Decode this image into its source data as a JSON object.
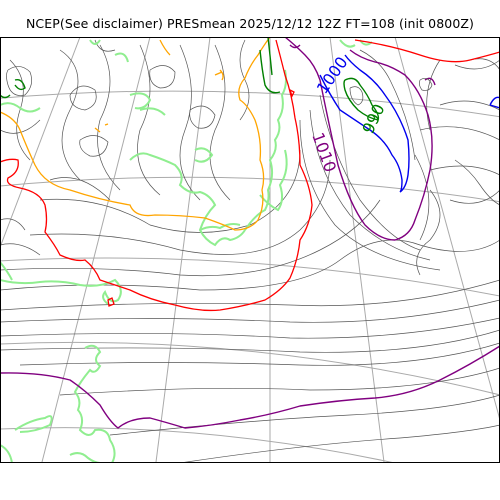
{
  "title": "NCEP(See disclaimer) PRESmean 2025/12/12 12Z FT=108 (init 0800Z)",
  "contour_labels": [
    {
      "text": "1000",
      "color": "#0000ee"
    },
    {
      "text": "990",
      "color": "#008000"
    },
    {
      "text": "1010",
      "color": "#800080"
    }
  ],
  "colors": {
    "coastline": "#90ee90",
    "isobar": "#555555",
    "grid": "#aaaaaa",
    "c1000": "#0000ee",
    "c990": "#008000",
    "c1010": "#800080",
    "c1020": "#ff0000",
    "c1015": "#ffa500"
  }
}
